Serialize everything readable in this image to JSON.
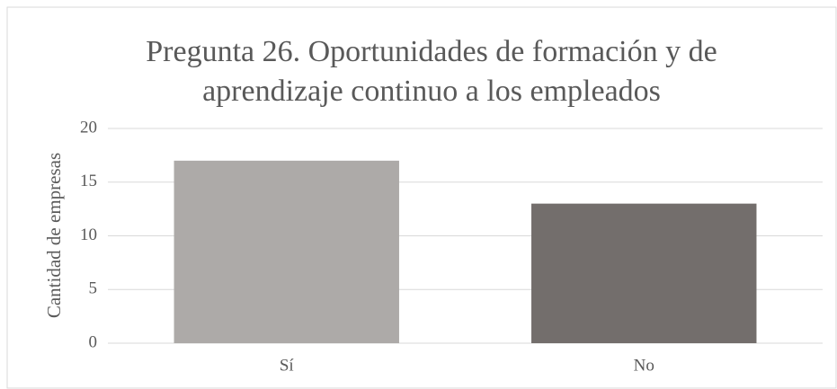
{
  "chart_data": {
    "type": "bar",
    "title": [
      "Pregunta 26. Oportunidades de formación y de",
      "aprendizaje continuo a los empleados"
    ],
    "ylabel": "Cantidad de empresas",
    "categories": [
      "Sí",
      "No"
    ],
    "values": [
      17,
      13
    ],
    "colors": [
      "#adaaa8",
      "#736e6c"
    ],
    "ylim": [
      0,
      20
    ],
    "yticks": [
      0,
      5,
      10,
      15,
      20
    ],
    "grid": true
  }
}
